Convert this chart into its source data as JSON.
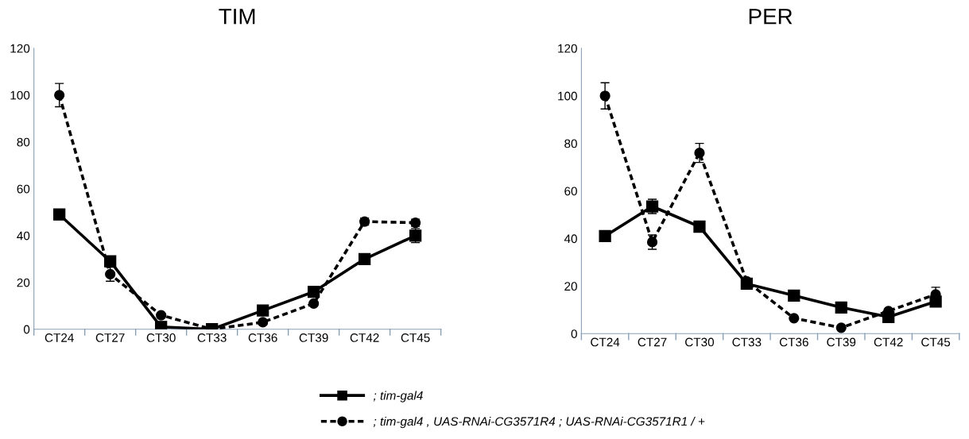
{
  "chart_data": [
    {
      "type": "line",
      "title": "TIM",
      "categories": [
        "CT24",
        "CT27",
        "CT30",
        "CT33",
        "CT36",
        "CT39",
        "CT42",
        "CT45"
      ],
      "ylim": [
        0,
        120
      ],
      "yticks": [
        0,
        20,
        40,
        60,
        80,
        100,
        120
      ],
      "grid": false,
      "legend": "bottom",
      "series": [
        {
          "name": "; tim-gal4",
          "color": "#000000",
          "marker": "square",
          "line_style": "solid",
          "values": [
            49,
            29,
            1,
            0,
            8,
            16,
            30,
            40
          ],
          "errors": [
            1.5,
            1.5,
            null,
            null,
            null,
            null,
            null,
            3
          ]
        },
        {
          "name": "; tim-gal4 , UAS-RNAi-CG3571R4 ; UAS-RNAi-CG3571R1 / +",
          "color": "#000000",
          "marker": "circle",
          "line_style": "dashed",
          "values": [
            100,
            23.5,
            6,
            0,
            3,
            11,
            46,
            45.5
          ],
          "errors": [
            5,
            3,
            null,
            null,
            null,
            null,
            1.5,
            1.5
          ]
        }
      ]
    },
    {
      "type": "line",
      "title": "PER",
      "categories": [
        "CT24",
        "CT27",
        "CT30",
        "CT33",
        "CT36",
        "CT39",
        "CT42",
        "CT45"
      ],
      "ylim": [
        0,
        120
      ],
      "yticks": [
        0,
        20,
        40,
        60,
        80,
        100,
        120
      ],
      "grid": false,
      "series": [
        {
          "color": "#000000",
          "marker": "square",
          "line_style": "solid",
          "values": [
            41,
            53.5,
            45,
            21,
            16,
            11,
            7,
            13.5
          ],
          "errors": [
            1.5,
            3,
            1.5,
            null,
            null,
            null,
            null,
            1.5
          ]
        },
        {
          "color": "#000000",
          "marker": "circle",
          "line_style": "dashed",
          "values": [
            100,
            38.5,
            76,
            22,
            6.5,
            2.5,
            9.5,
            16.5
          ],
          "errors": [
            5.5,
            3,
            4,
            null,
            null,
            null,
            null,
            3
          ]
        }
      ]
    }
  ]
}
